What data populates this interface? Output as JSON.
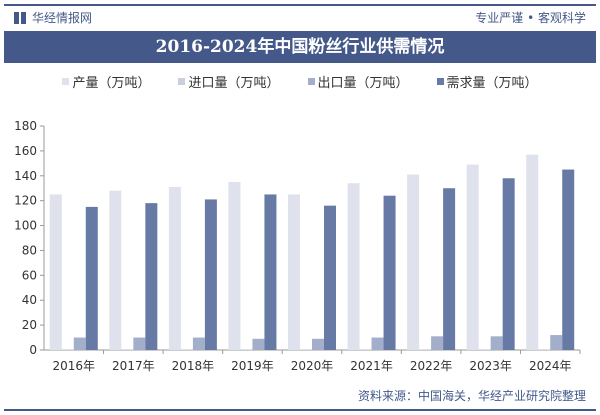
{
  "header": {
    "brand": "华经情报网",
    "slogan": "专业严谨 • 客观科学"
  },
  "source": "资料来源：中国海关，华经产业研究院整理",
  "chart_data": {
    "type": "bar",
    "title": "2016-2024年中国粉丝行业供需情况",
    "categories": [
      "2016年",
      "2017年",
      "2018年",
      "2019年",
      "2020年",
      "2021年",
      "2022年",
      "2023年",
      "2024年"
    ],
    "series": [
      {
        "name": "产量（万吨）",
        "color": "#dfe2ec",
        "values": [
          125,
          128,
          131,
          135,
          125,
          134,
          141,
          149,
          157
        ]
      },
      {
        "name": "进口量（万吨）",
        "color": "#c9cfdf",
        "values": [
          0.5,
          0.5,
          0.5,
          0.5,
          0.5,
          0.5,
          0.5,
          0.5,
          0.5
        ]
      },
      {
        "name": "出口量（万吨）",
        "color": "#a3aecb",
        "values": [
          10,
          10,
          10,
          9,
          9,
          10,
          11,
          11,
          12
        ]
      },
      {
        "name": "需求量（万吨）",
        "color": "#677aa5",
        "values": [
          115,
          118,
          121,
          125,
          116,
          124,
          130,
          138,
          145
        ]
      }
    ],
    "ylim": [
      0,
      180
    ],
    "yticks": [
      0,
      20,
      40,
      60,
      80,
      100,
      120,
      140,
      160,
      180
    ],
    "grid": false,
    "legend": "top"
  }
}
